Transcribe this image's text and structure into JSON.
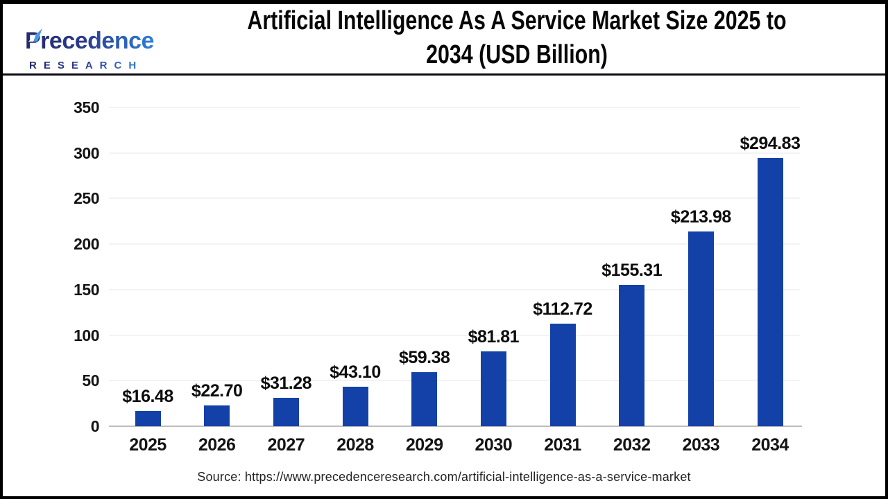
{
  "logo": {
    "name": "Precedence",
    "subname": "RESEARCH",
    "color_dark": "#242A6E",
    "color_light": "#2E7FD6"
  },
  "header": {
    "title_line1": "Artificial Intelligence As A Service Market Size 2025 to",
    "title_line2": "2034 (USD Billion)"
  },
  "chart_data": {
    "type": "bar",
    "title": "Artificial Intelligence As A Service Market Size 2025 to 2034 (USD Billion)",
    "categories": [
      "2025",
      "2026",
      "2027",
      "2028",
      "2029",
      "2030",
      "2031",
      "2032",
      "2033",
      "2034"
    ],
    "values": [
      16.48,
      22.7,
      31.28,
      43.1,
      59.38,
      81.81,
      112.72,
      155.31,
      213.98,
      294.83
    ],
    "data_labels": [
      "$16.48",
      "$22.70",
      "$31.28",
      "$43.10",
      "$59.38",
      "$81.81",
      "$112.72",
      "$155.31",
      "$213.98",
      "$294.83"
    ],
    "yticks": [
      0,
      50,
      100,
      150,
      200,
      250,
      300,
      350
    ],
    "ylim": [
      0,
      350
    ],
    "xlabel": "",
    "ylabel": "",
    "grid": "horizontal",
    "legend": "none",
    "bar_color": "#1341A8",
    "axis_color": "#BDBDBD",
    "gridline_color": "#F3F3F3",
    "label_color": "#0D0D0D"
  },
  "footer": {
    "source": "Source: https://www.precedenceresearch.com/artificial-intelligence-as-a-service-market"
  }
}
